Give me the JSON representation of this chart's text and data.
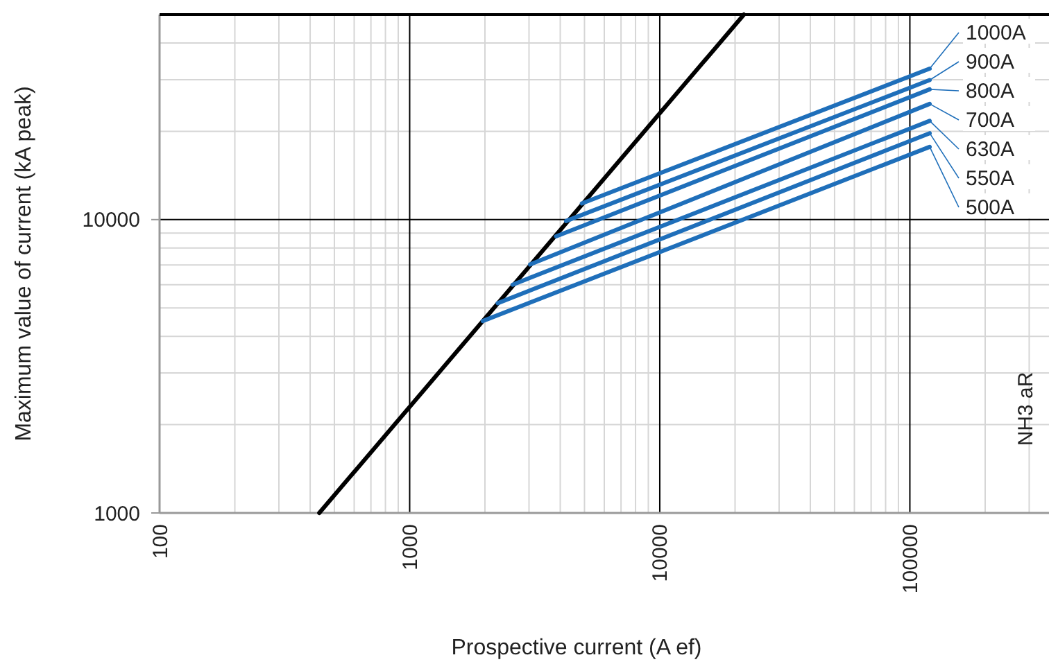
{
  "chart_data": {
    "type": "line",
    "xlabel": "Prospective current (A ef)",
    "ylabel": "Maximum value of current (kA peak)",
    "log": "xy",
    "xlim": [
      100,
      360000
    ],
    "ylim": [
      1000,
      50000
    ],
    "xticks": [
      100,
      1000,
      10000,
      100000
    ],
    "yticks": [
      1000,
      10000
    ],
    "grid": true,
    "marker": "none",
    "line_style": "solid",
    "annotations": [
      "NH3 aR"
    ],
    "series": [
      {
        "color": "#000000",
        "x": [
          435,
          21700
        ],
        "values": [
          1000,
          50000
        ]
      },
      {
        "name": "1000A",
        "color": "#1f6fba",
        "x": [
          4880,
          120000
        ],
        "values": [
          11350,
          32700
        ]
      },
      {
        "name": "900A",
        "color": "#1f6fba",
        "x": [
          4220,
          120000
        ],
        "values": [
          9890,
          29900
        ]
      },
      {
        "name": "800A",
        "color": "#1f6fba",
        "x": [
          3850,
          120000
        ],
        "values": [
          8770,
          27800
        ]
      },
      {
        "name": "700A",
        "color": "#1f6fba",
        "x": [
          3030,
          120000
        ],
        "values": [
          7030,
          24800
        ]
      },
      {
        "name": "630A",
        "color": "#1f6fba",
        "x": [
          2580,
          120000
        ],
        "values": [
          6000,
          21700
        ]
      },
      {
        "name": "550A",
        "color": "#1f6fba",
        "x": [
          2250,
          120000
        ],
        "values": [
          5190,
          19700
        ]
      },
      {
        "name": "500A",
        "color": "#1f6fba",
        "x": [
          1960,
          120000
        ],
        "values": [
          4510,
          17700
        ]
      }
    ]
  }
}
